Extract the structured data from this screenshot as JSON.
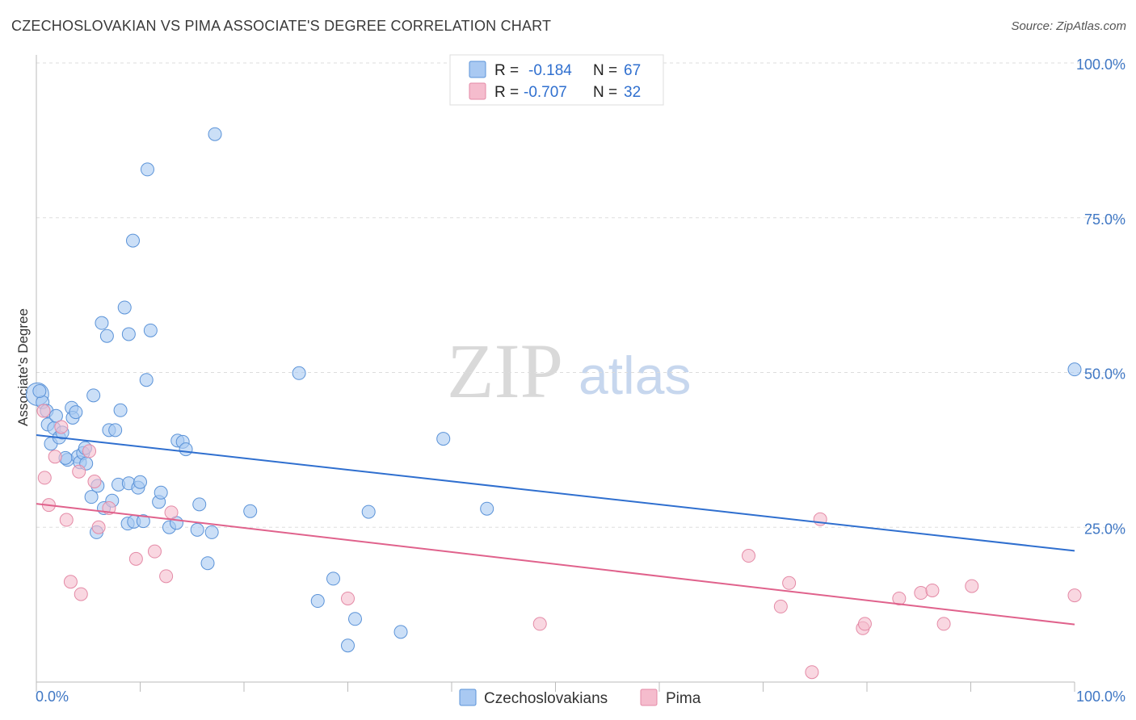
{
  "header": {
    "title": "CZECHOSLOVAKIAN VS PIMA ASSOCIATE'S DEGREE CORRELATION CHART",
    "source": "Source: ZipAtlas.com"
  },
  "watermark": {
    "zip": "ZIP",
    "atlas": "atlas"
  },
  "stats_legend": {
    "r_label": "R =",
    "n_label": "N =",
    "rows": [
      {
        "series": "czech",
        "r": "-0.184",
        "n": "67"
      },
      {
        "series": "pima",
        "r": "-0.707",
        "n": "32"
      }
    ]
  },
  "colors": {
    "czech_fill": "#a9c9f2",
    "czech_stroke": "#5b93d8",
    "czech_line": "#2f6fcf",
    "pima_fill": "#f5bccd",
    "pima_stroke": "#e48aa6",
    "pima_line": "#e0628c",
    "tick_text": "#3f77c4",
    "grid": "#dddddd"
  },
  "chart_data": {
    "type": "scatter",
    "title": "CZECHOSLOVAKIAN VS PIMA ASSOCIATE'S DEGREE CORRELATION CHART",
    "xlabel": "",
    "ylabel": "Associate's Degree",
    "xlim": [
      0,
      100
    ],
    "ylim": [
      0,
      100
    ],
    "x_tick_labels": [
      "0.0%",
      "100.0%"
    ],
    "y_ticks": [
      {
        "value": 25,
        "label": "25.0%"
      },
      {
        "value": 50,
        "label": "50.0%"
      },
      {
        "value": 75,
        "label": "75.0%"
      },
      {
        "value": 100,
        "label": "100.0%"
      }
    ],
    "grid": true,
    "legend_position": "bottom",
    "series": [
      {
        "name": "Czechoslovakians",
        "key": "czech",
        "trend": {
          "x": [
            0,
            100
          ],
          "y": [
            39.9,
            21.2
          ]
        },
        "points": [
          [
            0.1,
            46.5
          ],
          [
            0.6,
            45.2
          ],
          [
            1.0,
            43.8
          ],
          [
            1.1,
            41.6
          ],
          [
            1.4,
            38.5
          ],
          [
            1.7,
            41.0
          ],
          [
            1.9,
            43.0
          ],
          [
            2.2,
            39.5
          ],
          [
            2.5,
            40.3
          ],
          [
            3.0,
            35.9
          ],
          [
            3.4,
            44.3
          ],
          [
            3.5,
            42.7
          ],
          [
            3.8,
            43.6
          ],
          [
            4.0,
            36.4
          ],
          [
            4.2,
            35.5
          ],
          [
            4.5,
            37.0
          ],
          [
            4.7,
            37.8
          ],
          [
            4.8,
            35.3
          ],
          [
            5.3,
            29.9
          ],
          [
            5.5,
            46.3
          ],
          [
            5.9,
            31.7
          ],
          [
            5.8,
            24.2
          ],
          [
            6.3,
            58.0
          ],
          [
            6.5,
            28.1
          ],
          [
            6.8,
            55.9
          ],
          [
            7.0,
            40.7
          ],
          [
            7.3,
            29.3
          ],
          [
            7.6,
            40.7
          ],
          [
            7.9,
            31.9
          ],
          [
            8.1,
            43.9
          ],
          [
            8.5,
            60.5
          ],
          [
            8.8,
            25.6
          ],
          [
            8.9,
            32.1
          ],
          [
            8.9,
            56.2
          ],
          [
            9.3,
            71.3
          ],
          [
            9.4,
            25.9
          ],
          [
            9.8,
            31.4
          ],
          [
            10.0,
            32.3
          ],
          [
            10.3,
            26.0
          ],
          [
            10.6,
            48.8
          ],
          [
            10.7,
            82.8
          ],
          [
            11.0,
            56.8
          ],
          [
            11.8,
            29.1
          ],
          [
            12.0,
            30.6
          ],
          [
            12.8,
            25.0
          ],
          [
            13.5,
            25.7
          ],
          [
            13.6,
            39.0
          ],
          [
            14.1,
            38.8
          ],
          [
            14.4,
            37.6
          ],
          [
            15.5,
            24.6
          ],
          [
            15.7,
            28.7
          ],
          [
            16.5,
            19.2
          ],
          [
            16.9,
            24.2
          ],
          [
            17.2,
            88.5
          ],
          [
            20.6,
            27.6
          ],
          [
            25.3,
            49.9
          ],
          [
            27.1,
            13.1
          ],
          [
            28.6,
            16.7
          ],
          [
            30.0,
            5.9
          ],
          [
            30.7,
            10.2
          ],
          [
            32.0,
            27.5
          ],
          [
            35.1,
            8.1
          ],
          [
            39.2,
            39.3
          ],
          [
            43.4,
            28.0
          ],
          [
            100.0,
            50.5
          ],
          [
            0.3,
            47.0
          ],
          [
            2.8,
            36.2
          ]
        ]
      },
      {
        "name": "Pima",
        "key": "pima",
        "trend": {
          "x": [
            0,
            100
          ],
          "y": [
            28.8,
            9.3
          ]
        },
        "points": [
          [
            0.7,
            43.8
          ],
          [
            0.8,
            33.0
          ],
          [
            1.2,
            28.6
          ],
          [
            1.8,
            36.4
          ],
          [
            2.4,
            41.2
          ],
          [
            2.9,
            26.2
          ],
          [
            3.3,
            16.2
          ],
          [
            4.1,
            34.0
          ],
          [
            4.3,
            14.2
          ],
          [
            5.1,
            37.3
          ],
          [
            5.6,
            32.4
          ],
          [
            6.0,
            25.0
          ],
          [
            7.0,
            28.1
          ],
          [
            9.6,
            19.9
          ],
          [
            11.4,
            21.1
          ],
          [
            12.5,
            17.1
          ],
          [
            13.0,
            27.4
          ],
          [
            48.5,
            9.4
          ],
          [
            68.6,
            20.4
          ],
          [
            71.7,
            12.2
          ],
          [
            72.5,
            16.0
          ],
          [
            74.7,
            1.6
          ],
          [
            75.5,
            26.3
          ],
          [
            79.6,
            8.7
          ],
          [
            79.8,
            9.4
          ],
          [
            83.1,
            13.5
          ],
          [
            85.2,
            14.4
          ],
          [
            86.3,
            14.8
          ],
          [
            87.4,
            9.4
          ],
          [
            90.1,
            15.5
          ],
          [
            100.0,
            14.0
          ],
          [
            30.0,
            13.5
          ]
        ]
      }
    ]
  },
  "bottom_legend": [
    {
      "key": "czech",
      "label": "Czechoslovakians"
    },
    {
      "key": "pima",
      "label": "Pima"
    }
  ]
}
